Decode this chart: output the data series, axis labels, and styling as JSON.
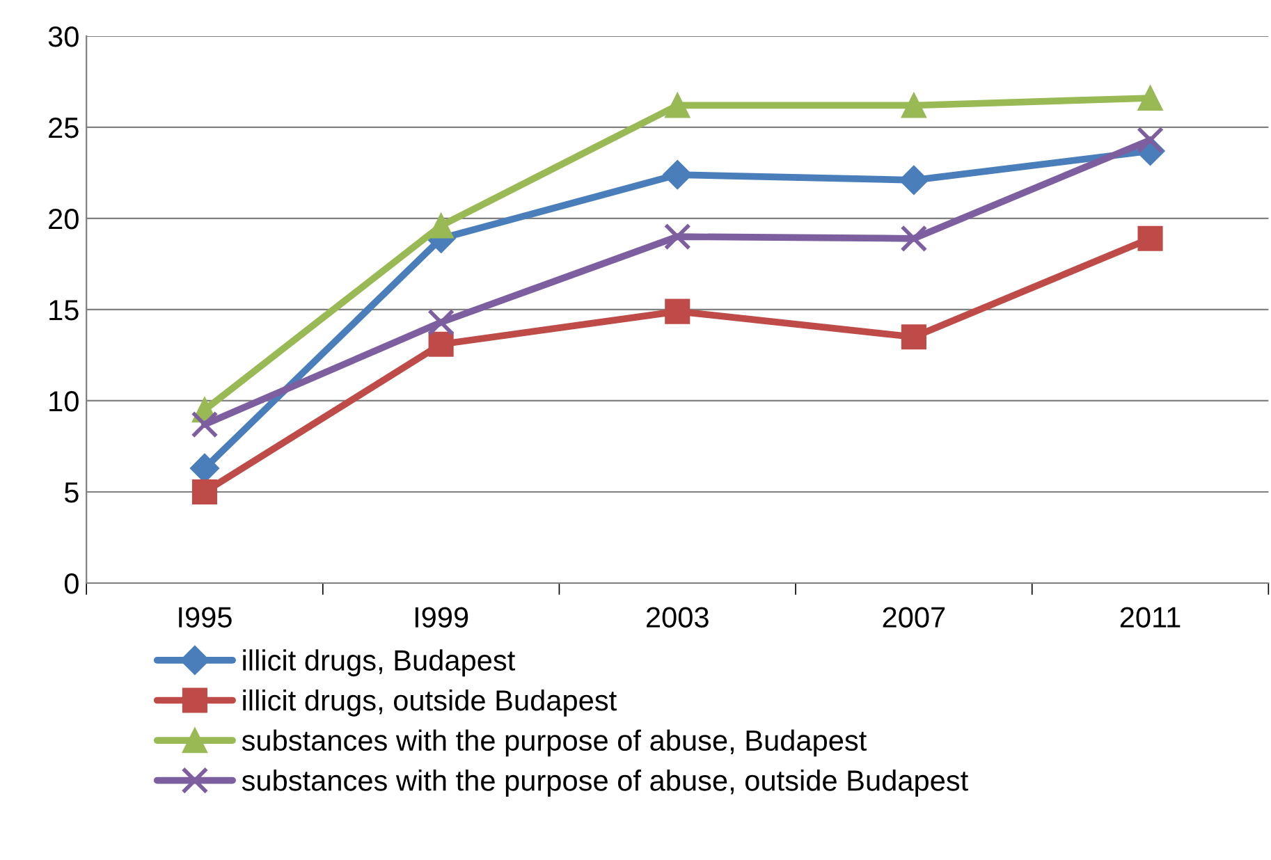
{
  "chart_data": {
    "type": "line",
    "categories": [
      "I995",
      "I999",
      "2003",
      "2007",
      "2011"
    ],
    "series": [
      {
        "name": "illicit drugs, Budapest",
        "color": "#4a7ebb",
        "marker": "diamond",
        "values": [
          6.3,
          18.9,
          22.4,
          22.1,
          23.7
        ]
      },
      {
        "name": "illicit drugs, outside Budapest",
        "color": "#be4b48",
        "marker": "square",
        "values": [
          5.0,
          13.1,
          14.9,
          13.5,
          18.9
        ]
      },
      {
        "name": "substances with the purpose of abuse, Budapest",
        "color": "#98b954",
        "marker": "triangle",
        "values": [
          9.5,
          19.6,
          26.2,
          26.2,
          26.6
        ]
      },
      {
        "name": "substances with the purpose of abuse, outside Budapest",
        "color": "#7d5fa0",
        "marker": "cross",
        "values": [
          8.7,
          14.3,
          19.0,
          18.9,
          24.3
        ]
      }
    ],
    "ylim": [
      0,
      30
    ],
    "yticks": [
      0,
      5,
      10,
      15,
      20,
      25,
      30
    ],
    "grid": "y",
    "legend": "bottom"
  }
}
